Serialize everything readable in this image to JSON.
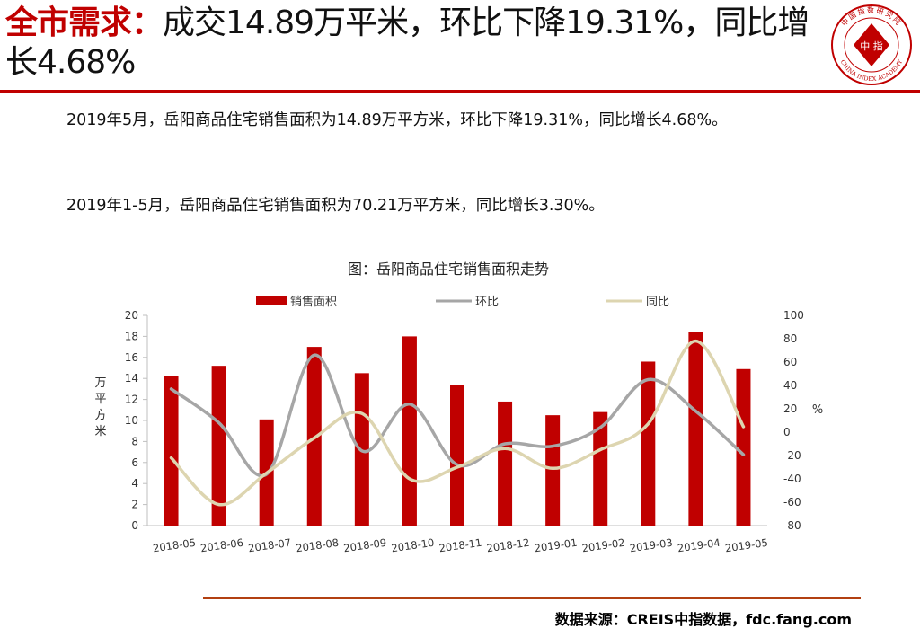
{
  "slide": {
    "title_accent": "全市需求：",
    "title_rest": "成交14.89万平米，环比下降19.31%，同比增长4.68%",
    "paragraph1": "2019年5月，岳阳商品住宅销售面积为14.89万平方米，环比下降19.31%，同比增长4.68%。",
    "paragraph2": "2019年1-5月，岳阳商品住宅销售面积为70.21万平方米，同比增长3.30%。",
    "source": "数据来源：CREIS中指数据，fdc.fang.com",
    "logo_center_text": "中 指",
    "logo_ring_text": "CHINA INDEX ACADEMY",
    "logo_top_text": "中国指数研究院"
  },
  "colors": {
    "accent": "#c00000",
    "bar": "#c00000",
    "mom_line": "#a6a6a6",
    "yoy_line": "#ddd5b0",
    "footer_rule": "#b24011"
  },
  "chart_data": {
    "type": "bar",
    "title": "图：岳阳商品住宅销售面积走势",
    "categories": [
      "2018-05",
      "2018-06",
      "2018-07",
      "2018-08",
      "2018-09",
      "2018-10",
      "2018-11",
      "2018-12",
      "2019-01",
      "2019-02",
      "2019-03",
      "2019-04",
      "2019-05"
    ],
    "series": [
      {
        "name": "销售面积",
        "type": "bar",
        "axis": "left",
        "values": [
          14.2,
          15.2,
          10.1,
          17.0,
          14.5,
          18.0,
          13.4,
          11.8,
          10.5,
          10.8,
          15.6,
          18.4,
          14.89
        ]
      },
      {
        "name": "环比",
        "type": "line",
        "axis": "right",
        "values": [
          37,
          8,
          -36,
          66,
          -16,
          24,
          -28,
          -10,
          -12,
          4,
          45,
          18,
          -19.31
        ]
      },
      {
        "name": "同比",
        "type": "line",
        "axis": "right",
        "values": [
          -22,
          -62,
          -35,
          -5,
          16,
          -40,
          -30,
          -14,
          -31,
          -15,
          7,
          78,
          4.68
        ]
      }
    ],
    "ylabel": "万平方米",
    "y2label": "%",
    "ylim": [
      0,
      20
    ],
    "yticks": [
      0,
      2,
      4,
      6,
      8,
      10,
      12,
      14,
      16,
      18,
      20
    ],
    "y2lim": [
      -80,
      100
    ],
    "y2ticks": [
      -80,
      -60,
      -40,
      -20,
      0,
      20,
      40,
      60,
      80,
      100
    ],
    "grid": false,
    "legend_position": "top"
  }
}
